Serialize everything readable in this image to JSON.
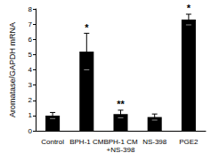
{
  "chart_data": {
    "type": "bar",
    "y_label": "Aromatase/GAPDH mRNA",
    "categories": [
      "Control",
      "BPH-1 CM",
      "BPH-1 CM\n+NS-398",
      "NS-398",
      "PGE2"
    ],
    "values": [
      1.0,
      5.2,
      1.1,
      0.9,
      7.3
    ],
    "errors": [
      0.2,
      1.2,
      0.25,
      0.2,
      0.35
    ],
    "annotations": [
      {
        "category": "BPH-1 CM",
        "text": "*"
      },
      {
        "category": "BPH-1 CM\n+NS-398",
        "text": "**"
      },
      {
        "category": "PGE2",
        "text": "*"
      }
    ],
    "color": "#000000",
    "ylim": [
      0,
      8
    ],
    "yticks": [
      0,
      1,
      2,
      3,
      4,
      5,
      6,
      7,
      8
    ],
    "grid": false
  }
}
